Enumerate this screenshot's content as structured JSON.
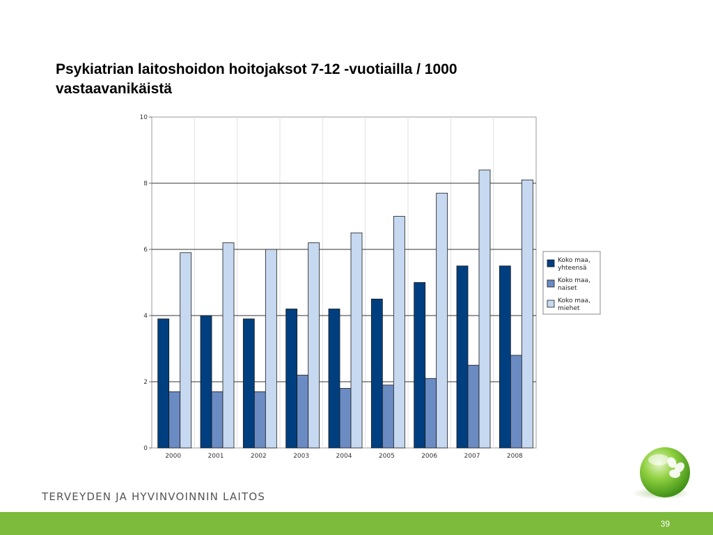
{
  "slide": {
    "title_line1": "Psykiatrian laitoshoidon hoitojaksot 7-12 -vuotiailla / 1000",
    "title_line2": "vastaavanikäistä",
    "org_name": "TERVEYDEN JA HYVINVOINNIN LAITOS",
    "page_number": "39"
  },
  "colors": {
    "yhteensa": "#003f7f",
    "naiset": "#6b8bc3",
    "miehet": "#c6d9f1",
    "footer": "#7dbb3c"
  },
  "chart_data": {
    "type": "bar",
    "categories": [
      "2000",
      "2001",
      "2002",
      "2003",
      "2004",
      "2005",
      "2006",
      "2007",
      "2008"
    ],
    "series": [
      {
        "name": "Koko maa, yhteensä",
        "lines": [
          "Koko maa,",
          "yhteensä"
        ],
        "color": "#003f7f",
        "values": [
          3.9,
          4.0,
          3.9,
          4.2,
          4.2,
          4.5,
          5.0,
          5.5,
          5.5
        ]
      },
      {
        "name": "Koko maa, naiset",
        "lines": [
          "Koko maa,",
          "naiset"
        ],
        "color": "#6b8bc3",
        "values": [
          1.7,
          1.7,
          1.7,
          2.2,
          1.8,
          1.9,
          2.1,
          2.5,
          2.8
        ]
      },
      {
        "name": "Koko maa, miehet",
        "lines": [
          "Koko maa,",
          "miehet"
        ],
        "color": "#c6d9f1",
        "values": [
          5.9,
          6.2,
          6.0,
          6.2,
          6.5,
          7.0,
          7.7,
          8.4,
          8.1
        ]
      }
    ],
    "ylim": [
      0,
      10
    ],
    "yticks": [
      0,
      2,
      4,
      6,
      8,
      10
    ],
    "ytick_labels": [
      "0",
      "2",
      "4",
      "6",
      "8",
      "10"
    ],
    "grid": true,
    "legend_position": "right"
  }
}
